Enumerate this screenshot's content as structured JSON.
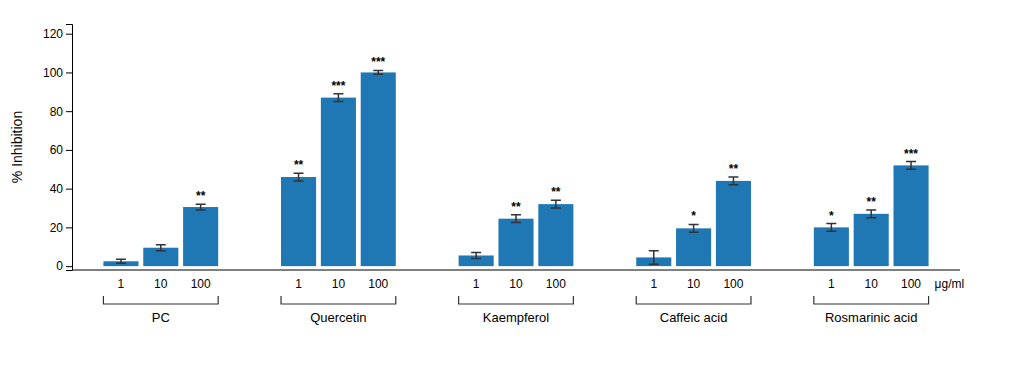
{
  "chart_data": {
    "type": "bar",
    "ylabel": "% Inhibition",
    "xlabel": "μg/ml",
    "ylim": [
      -2,
      125
    ],
    "yticks": [
      0,
      20,
      40,
      60,
      80,
      100,
      120
    ],
    "groups": [
      {
        "label": "PC",
        "categories": [
          "1",
          "10",
          "100"
        ],
        "values": [
          2.5,
          9.5,
          30.5
        ],
        "errors": [
          1.0,
          1.5,
          1.5
        ],
        "annotations": [
          null,
          null,
          "**"
        ]
      },
      {
        "label": "Quercetin",
        "categories": [
          "1",
          "10",
          "100"
        ],
        "values": [
          46.0,
          87.0,
          100.0
        ],
        "errors": [
          2.0,
          2.0,
          1.0
        ],
        "annotations": [
          "**",
          "***",
          "***"
        ]
      },
      {
        "label": "Kaempferol",
        "categories": [
          "1",
          "10",
          "100"
        ],
        "values": [
          5.5,
          24.5,
          32.0
        ],
        "errors": [
          1.5,
          2.0,
          2.0
        ],
        "annotations": [
          null,
          "**",
          "**"
        ]
      },
      {
        "label": "Caffeic acid",
        "categories": [
          "1",
          "10",
          "100"
        ],
        "values": [
          4.5,
          19.5,
          44.0
        ],
        "errors": [
          3.5,
          2.0,
          2.0
        ],
        "annotations": [
          null,
          "*",
          "**"
        ]
      },
      {
        "label": "Rosmarinic acid",
        "categories": [
          "1",
          "10",
          "100"
        ],
        "values": [
          20.0,
          27.0,
          52.0
        ],
        "errors": [
          2.0,
          2.0,
          2.0
        ],
        "annotations": [
          "*",
          "**",
          "***"
        ]
      }
    ]
  }
}
